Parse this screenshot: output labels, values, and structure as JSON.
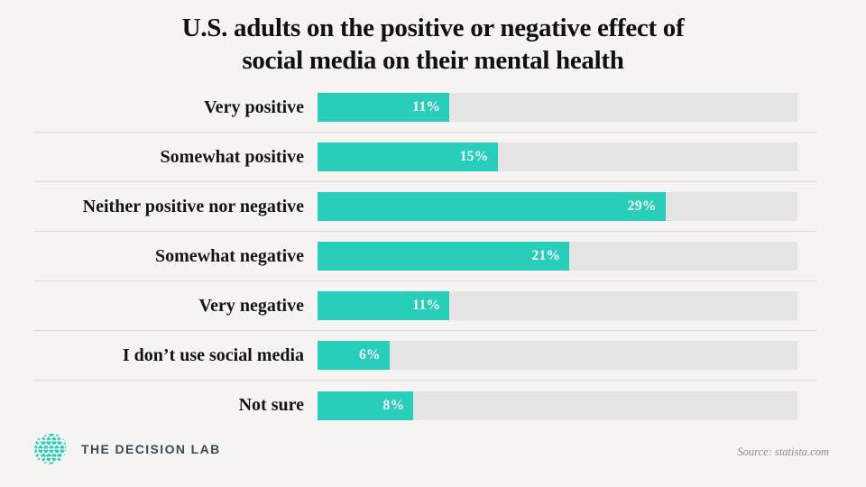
{
  "title": {
    "line1": "U.S. adults on the positive or negative effect of",
    "line2": "social media on their mental health"
  },
  "chart_data": {
    "type": "bar",
    "orientation": "horizontal",
    "title": "U.S. adults on the positive or negative effect of social media on their mental health",
    "categories": [
      "Very positive",
      "Somewhat positive",
      "Neither positive nor negative",
      "Somewhat negative",
      "Very negative",
      "I don’t use social media",
      "Not sure"
    ],
    "values": [
      11,
      15,
      29,
      21,
      11,
      6,
      8
    ],
    "value_labels": [
      "11%",
      "15%",
      "29%",
      "21%",
      "11%",
      "6%",
      "8%"
    ],
    "xlabel": "",
    "ylabel": "",
    "axis_max": 40,
    "grid": false,
    "legend": false,
    "bar_color": "#29CEBB",
    "track_color": "#E4E4E4",
    "value_label_position": "inside-end",
    "value_label_color": "#FFFFFF"
  },
  "footer": {
    "brand": "THE DECISION LAB",
    "logo_icon": "brain-weave-icon",
    "source": "Source: statista.com"
  },
  "colors": {
    "background": "#F5F4F2",
    "accent_teal": "#29CEBB",
    "track_gray": "#E4E4E4",
    "separator": "#D9D9D9",
    "title_text": "#101010",
    "brand_text": "#3C4A52",
    "source_text": "#8C8C8C"
  }
}
